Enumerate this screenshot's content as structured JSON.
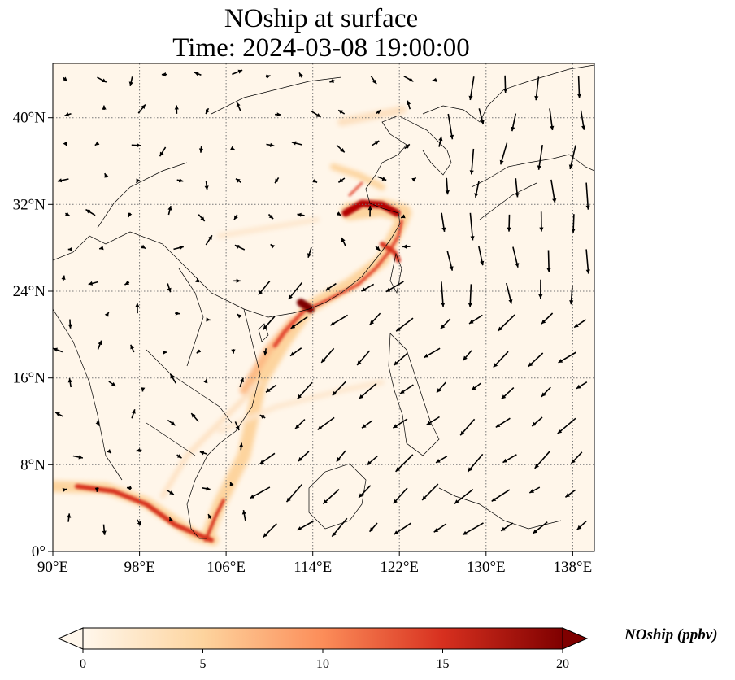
{
  "title": {
    "line1": "NOship at surface",
    "line2": "Time: 2024-03-08 19:00:00"
  },
  "map": {
    "lon_range": [
      90,
      140
    ],
    "lat_range": [
      0,
      45
    ],
    "lon_ticks": [
      "90°E",
      "98°E",
      "106°E",
      "114°E",
      "122°E",
      "130°E",
      "138°E"
    ],
    "lat_ticks": [
      "0°",
      "8°N",
      "16°N",
      "24°N",
      "32°N",
      "40°N"
    ],
    "grid": "dotted"
  },
  "colorbar": {
    "label": "NOship (ppbv)",
    "ticks": [
      "0",
      "5",
      "10",
      "15",
      "20"
    ],
    "range": [
      0,
      20
    ],
    "extend": "both",
    "colormap": "OrRd",
    "colors": [
      "#fff7ec",
      "#fdd49e",
      "#fc8d59",
      "#d7301f",
      "#7f0000"
    ]
  }
}
